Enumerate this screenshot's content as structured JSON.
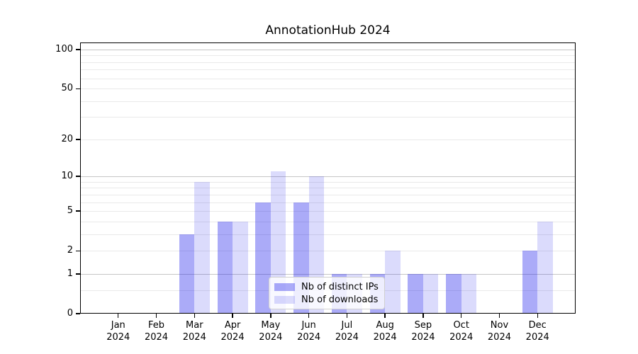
{
  "chart_data": {
    "type": "bar",
    "title": "AnnotationHub 2024",
    "categories": [
      "Jan",
      "Feb",
      "Mar",
      "Apr",
      "May",
      "Jun",
      "Jul",
      "Aug",
      "Sep",
      "Oct",
      "Nov",
      "Dec"
    ],
    "category_year": "2024",
    "series": [
      {
        "name": "Nb of distinct IPs",
        "color": "rgba(13,13,236,0.35)",
        "values": [
          0,
          0,
          3,
          4,
          6,
          6,
          1,
          1,
          1,
          1,
          0,
          2
        ]
      },
      {
        "name": "Nb of downloads",
        "color": "rgba(13,13,236,0.15)",
        "values": [
          0,
          0,
          9,
          4,
          11,
          10,
          1,
          2,
          1,
          1,
          0,
          4
        ]
      }
    ],
    "y_axis": {
      "scale": "log1p",
      "tick_values": [
        100,
        50,
        20,
        10,
        5,
        2,
        1,
        0
      ],
      "tick_labels": [
        "100",
        "50",
        "20",
        "10",
        "5",
        "2",
        "1",
        "0"
      ],
      "major_gridline_values": [
        1,
        10,
        100
      ],
      "minor_gridline_values": [
        0.5,
        2,
        3,
        4,
        5,
        6,
        7,
        8,
        9,
        20,
        30,
        40,
        50,
        60,
        70,
        80,
        90
      ]
    },
    "legend": {
      "position": "lower center",
      "entries": [
        "Nb of distinct IPs",
        "Nb of downloads"
      ]
    },
    "colors": {
      "background": "#ffffff",
      "axis": "#000000",
      "major_grid": "#c6c6c6",
      "minor_grid": "#e9e9e9",
      "legend_border": "#d0d0d0",
      "text": "#000000"
    }
  }
}
